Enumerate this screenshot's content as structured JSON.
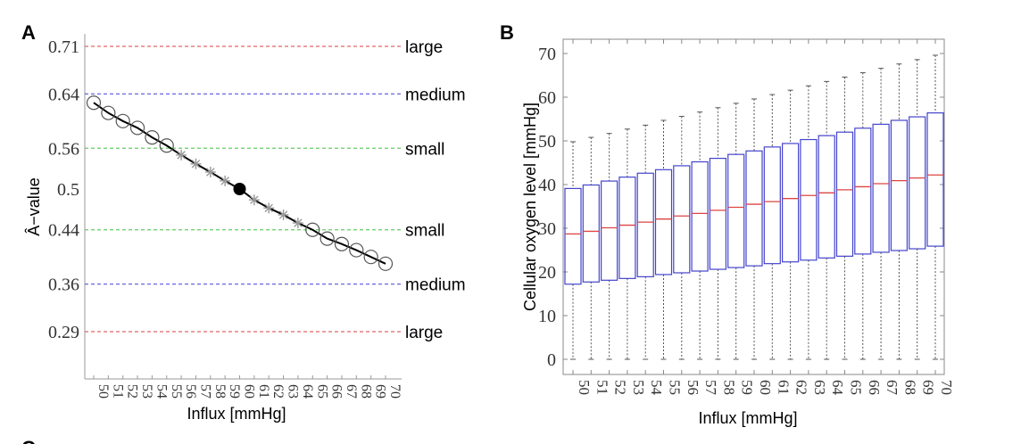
{
  "chart_data": [
    {
      "panel_label": "A",
      "type": "line",
      "xlabel": "Influx [mmHg]",
      "ylabel": "Â−value",
      "x": [
        50,
        51,
        52,
        53,
        54,
        55,
        56,
        57,
        58,
        59,
        60,
        61,
        62,
        63,
        64,
        65,
        66,
        67,
        68,
        69,
        70
      ],
      "values": [
        0.627,
        0.612,
        0.6,
        0.59,
        0.576,
        0.564,
        0.55,
        0.537,
        0.525,
        0.512,
        0.5,
        0.484,
        0.472,
        0.462,
        0.45,
        0.44,
        0.427,
        0.419,
        0.41,
        0.4,
        0.39
      ],
      "markers": [
        "circle",
        "circle",
        "circle",
        "circle",
        "circle",
        "circle",
        "star",
        "star",
        "star",
        "star",
        "filled-circle",
        "star",
        "star",
        "star",
        "star",
        "circle",
        "circle",
        "circle",
        "circle",
        "circle",
        "circle"
      ],
      "yticks": [
        "0.71",
        "0.64",
        "0.56",
        "0.5",
        "0.44",
        "0.36",
        "0.29"
      ],
      "ytick_values": [
        0.71,
        0.64,
        0.56,
        0.5,
        0.44,
        0.36,
        0.29
      ],
      "ylim": [
        0.22,
        0.728
      ],
      "xlim": [
        49.4,
        71.1
      ],
      "reference_lines": [
        {
          "value": 0.71,
          "label": "large",
          "color": "#e06666"
        },
        {
          "value": 0.64,
          "label": "medium",
          "color": "#5555dd"
        },
        {
          "value": 0.56,
          "label": "small",
          "color": "#66cc66"
        },
        {
          "value": 0.44,
          "label": "small",
          "color": "#66cc66"
        },
        {
          "value": 0.36,
          "label": "medium",
          "color": "#5555dd"
        },
        {
          "value": 0.29,
          "label": "large",
          "color": "#e06666"
        }
      ],
      "grid": false
    },
    {
      "panel_label": "B",
      "type": "box",
      "xlabel": "Influx [mmHg]",
      "ylabel": "Cellular oxygen level [mmHg]",
      "categories": [
        "50",
        "51",
        "52",
        "53",
        "54",
        "55",
        "56",
        "57",
        "58",
        "59",
        "60",
        "61",
        "62",
        "63",
        "64",
        "65",
        "66",
        "67",
        "68",
        "69",
        "70"
      ],
      "min": [
        0,
        0,
        0,
        0,
        0,
        0,
        0,
        0,
        0,
        0,
        0,
        0,
        0,
        0,
        0,
        0,
        0,
        0,
        0,
        0,
        0
      ],
      "q1": [
        17.2,
        17.7,
        18.1,
        18.5,
        18.9,
        19.4,
        19.8,
        20.2,
        20.6,
        21.0,
        21.4,
        21.9,
        22.3,
        22.7,
        23.2,
        23.6,
        24.1,
        24.5,
        24.9,
        25.3,
        25.9
      ],
      "median": [
        28.7,
        29.3,
        30.1,
        30.7,
        31.4,
        32.1,
        32.8,
        33.4,
        34.1,
        34.8,
        35.5,
        36.1,
        36.8,
        37.5,
        38.1,
        38.8,
        39.5,
        40.2,
        40.9,
        41.5,
        42.2
      ],
      "q3": [
        39.1,
        39.9,
        40.8,
        41.7,
        42.6,
        43.4,
        44.3,
        45.2,
        46.0,
        46.9,
        47.7,
        48.6,
        49.4,
        50.3,
        51.2,
        52.0,
        52.9,
        53.8,
        54.7,
        55.5,
        56.4
      ],
      "max": [
        49.8,
        50.8,
        51.7,
        52.7,
        53.6,
        54.7,
        55.6,
        56.6,
        57.6,
        58.6,
        59.6,
        60.6,
        61.6,
        62.6,
        63.6,
        64.6,
        65.6,
        66.6,
        67.6,
        68.6,
        69.6
      ],
      "yticks": [
        "0",
        "10",
        "20",
        "30",
        "40",
        "50",
        "60",
        "70"
      ],
      "ylim": [
        -3.5,
        73.5
      ],
      "box_color": "#4444cc",
      "median_color": "#dd4444",
      "grid": false
    }
  ],
  "next_panel_label": "C"
}
